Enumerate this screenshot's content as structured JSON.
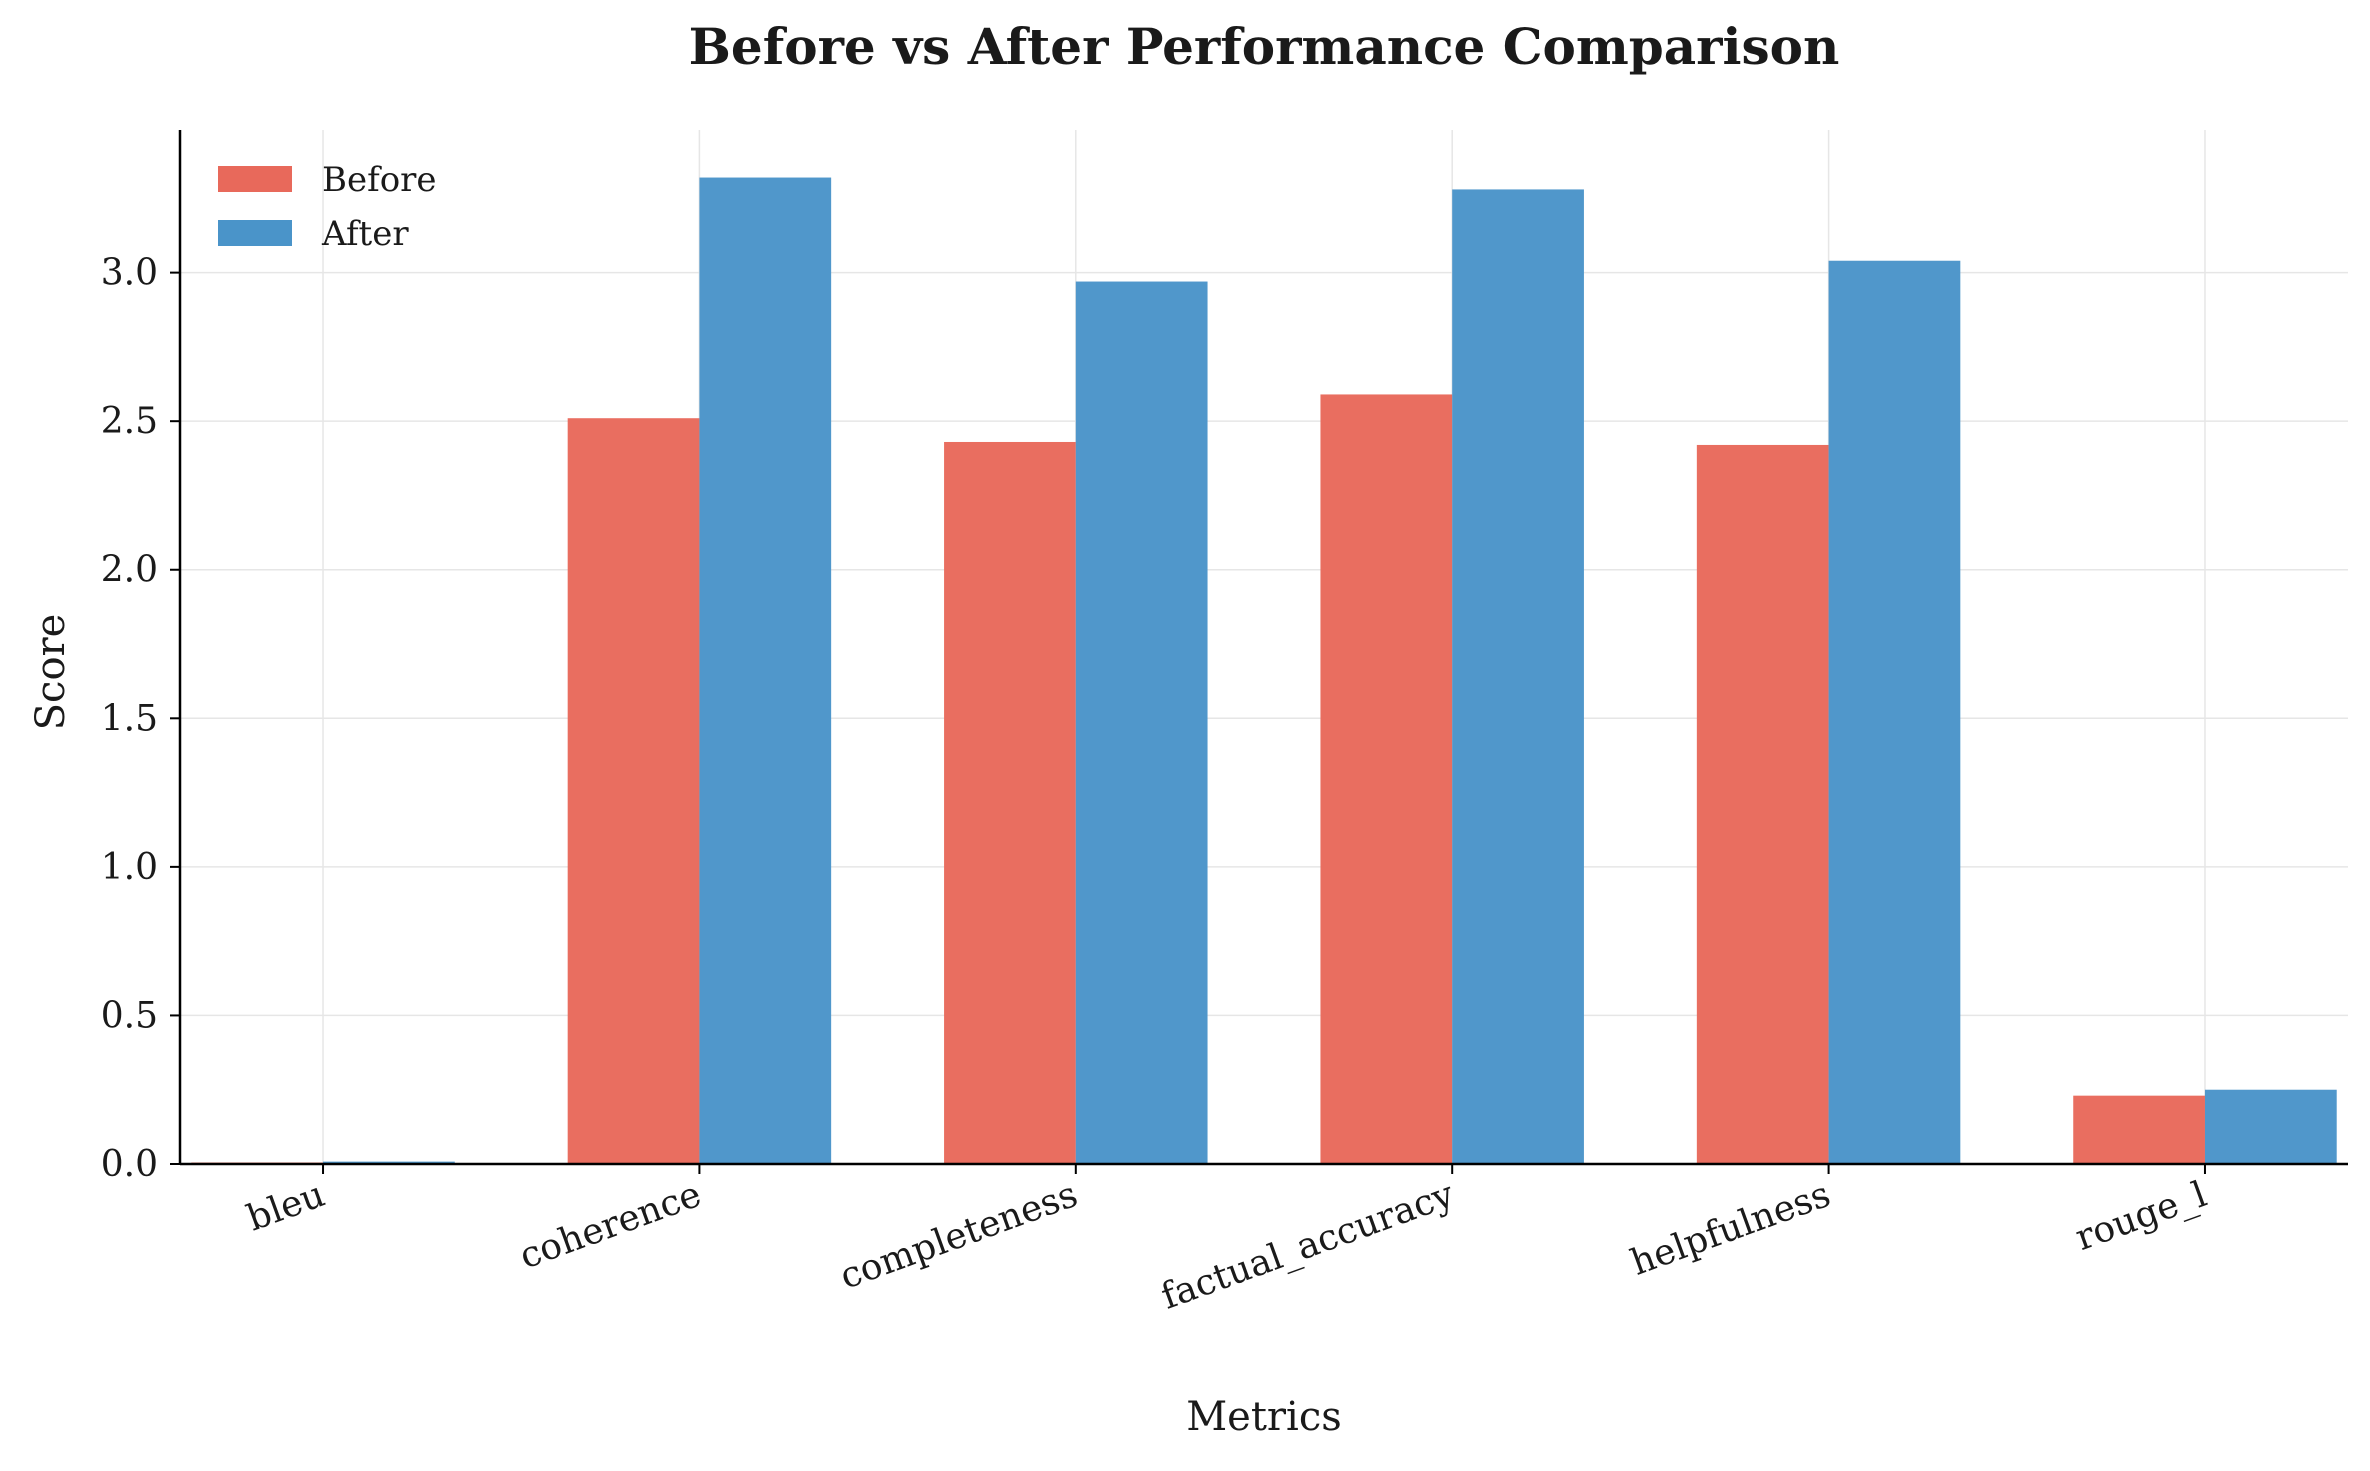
{
  "chart_data": {
    "type": "bar",
    "title": "Before vs After Performance Comparison",
    "xlabel": "Metrics",
    "ylabel": "Score",
    "categories": [
      "bleu",
      "coherence",
      "completeness",
      "factual_accuracy",
      "helpfulness",
      "rouge_l"
    ],
    "series": [
      {
        "name": "Before",
        "color": "#e8695b",
        "values": [
          0.005,
          2.51,
          2.43,
          2.59,
          2.42,
          0.23
        ]
      },
      {
        "name": "After",
        "color": "#4a94c9",
        "values": [
          0.008,
          3.32,
          2.97,
          3.28,
          3.04,
          0.25
        ]
      }
    ],
    "ylim": [
      0,
      3.48
    ],
    "yticks": [
      "0.0",
      "0.5",
      "1.0",
      "1.5",
      "2.0",
      "2.5",
      "3.0"
    ],
    "grid": true,
    "legend_position": "top-left"
  }
}
